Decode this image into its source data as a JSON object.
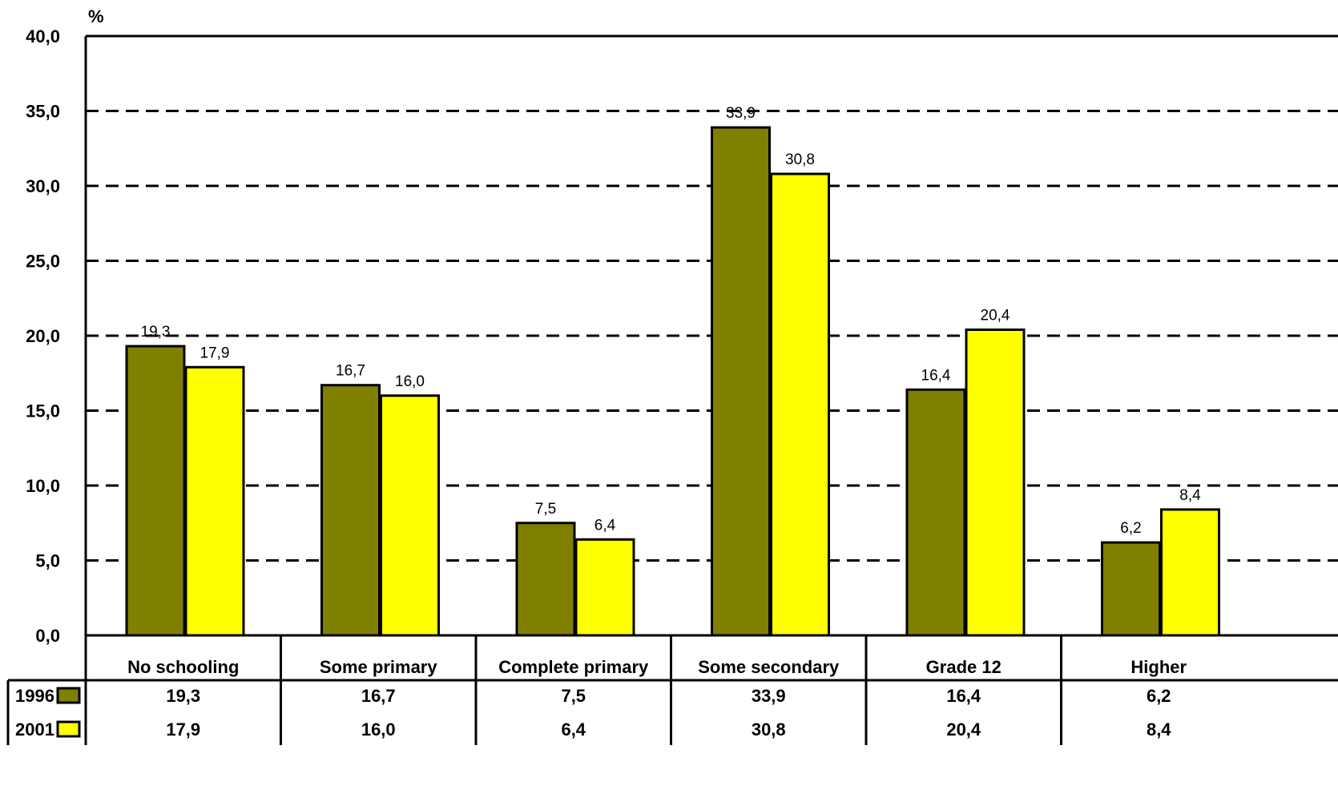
{
  "chart_data": {
    "type": "bar",
    "ylabel": "%",
    "ylim": [
      0,
      40
    ],
    "yticks": [
      "0,0",
      "5,0",
      "10,0",
      "15,0",
      "20,0",
      "25,0",
      "30,0",
      "35,0",
      "40,0"
    ],
    "grid": true,
    "categories": [
      "No schooling",
      "Some primary",
      "Complete primary",
      "Some secondary",
      "Grade 12",
      "Higher"
    ],
    "series": [
      {
        "name": "1996",
        "color": "#808000",
        "values": [
          19.3,
          16.7,
          7.5,
          33.9,
          16.4,
          6.2
        ],
        "labels": [
          "19,3",
          "16,7",
          "7,5",
          "33,9",
          "16,4",
          "6,2"
        ]
      },
      {
        "name": "2001",
        "color": "#ffff00",
        "values": [
          17.9,
          16.0,
          6.4,
          30.8,
          20.4,
          8.4
        ],
        "labels": [
          "17,9",
          "16,0",
          "6,4",
          "30,8",
          "20,4",
          "8,4"
        ]
      }
    ],
    "legend": "data-table"
  }
}
